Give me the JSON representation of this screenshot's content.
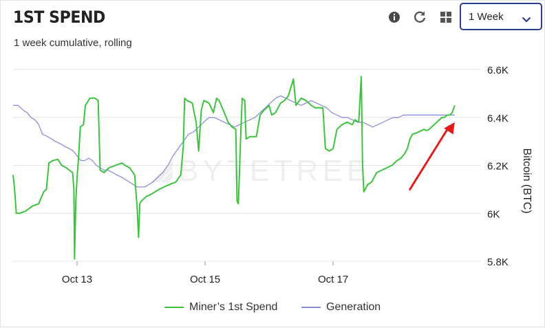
{
  "header": {
    "title": "1ST SPEND",
    "subtitle": "1 week cumulative, rolling"
  },
  "toolbar": {
    "icons": [
      "info-icon",
      "refresh-icon",
      "grid-icon"
    ],
    "period_selected": "1 Week"
  },
  "watermark": "BYTETREE",
  "colors": {
    "series_spend": "#3cc33c",
    "series_generation": "#8b8ed6",
    "annotation_arrow": "#e31b1b",
    "select_border": "#2f3b8f"
  },
  "chart_data": {
    "type": "line",
    "x_domain": [
      0,
      7.3
    ],
    "x_ticks": [
      {
        "x": 1.0,
        "label": "Oct 13"
      },
      {
        "x": 3.0,
        "label": "Oct 15"
      },
      {
        "x": 5.0,
        "label": "Oct 17"
      }
    ],
    "ylim": [
      5800,
      6600
    ],
    "y_ticks": [
      {
        "y": 5800,
        "label": "5.8K"
      },
      {
        "y": 6000,
        "label": "6K"
      },
      {
        "y": 6200,
        "label": "6.2K"
      },
      {
        "y": 6400,
        "label": "6.4K"
      },
      {
        "y": 6600,
        "label": "6.6K"
      }
    ],
    "ylabel": "Bitcoin (BTC)",
    "grid": true,
    "legend_position": "bottom",
    "annotation": {
      "type": "arrow",
      "from": [
        6.2,
        6100
      ],
      "to": [
        6.9,
        6380
      ]
    },
    "series": [
      {
        "name": "Miner’s 1st Spend",
        "color": "#3cc33c",
        "points": [
          [
            0.0,
            6160
          ],
          [
            0.02,
            6110
          ],
          [
            0.05,
            6000
          ],
          [
            0.1,
            6000
          ],
          [
            0.2,
            6010
          ],
          [
            0.3,
            6030
          ],
          [
            0.4,
            6040
          ],
          [
            0.48,
            6090
          ],
          [
            0.52,
            6100
          ],
          [
            0.56,
            6210
          ],
          [
            0.62,
            6220
          ],
          [
            0.7,
            6225
          ],
          [
            0.76,
            6200
          ],
          [
            0.83,
            6190
          ],
          [
            0.88,
            6180
          ],
          [
            0.93,
            6170
          ],
          [
            0.95,
            6100
          ],
          [
            0.96,
            5810
          ],
          [
            0.98,
            6050
          ],
          [
            1.0,
            6150
          ],
          [
            1.02,
            6220
          ],
          [
            1.05,
            6360
          ],
          [
            1.1,
            6370
          ],
          [
            1.13,
            6450
          ],
          [
            1.2,
            6480
          ],
          [
            1.28,
            6480
          ],
          [
            1.33,
            6470
          ],
          [
            1.36,
            6180
          ],
          [
            1.42,
            6170
          ],
          [
            1.5,
            6190
          ],
          [
            1.6,
            6200
          ],
          [
            1.7,
            6210
          ],
          [
            1.75,
            6200
          ],
          [
            1.82,
            6190
          ],
          [
            1.9,
            6160
          ],
          [
            1.94,
            6020
          ],
          [
            1.96,
            5900
          ],
          [
            1.98,
            6040
          ],
          [
            2.0,
            6050
          ],
          [
            2.08,
            6070
          ],
          [
            2.16,
            6080
          ],
          [
            2.22,
            6090
          ],
          [
            2.28,
            6100
          ],
          [
            2.36,
            6110
          ],
          [
            2.44,
            6120
          ],
          [
            2.54,
            6130
          ],
          [
            2.62,
            6160
          ],
          [
            2.66,
            6280
          ],
          [
            2.68,
            6480
          ],
          [
            2.72,
            6470
          ],
          [
            2.8,
            6460
          ],
          [
            2.86,
            6380
          ],
          [
            2.9,
            6260
          ],
          [
            2.94,
            6430
          ],
          [
            2.98,
            6470
          ],
          [
            3.06,
            6460
          ],
          [
            3.13,
            6420
          ],
          [
            3.18,
            6480
          ],
          [
            3.22,
            6470
          ],
          [
            3.3,
            6420
          ],
          [
            3.36,
            6380
          ],
          [
            3.42,
            6360
          ],
          [
            3.48,
            6350
          ],
          [
            3.5,
            6050
          ],
          [
            3.52,
            6040
          ],
          [
            3.54,
            6200
          ],
          [
            3.56,
            6350
          ],
          [
            3.58,
            6480
          ],
          [
            3.62,
            6470
          ],
          [
            3.64,
            6310
          ],
          [
            3.7,
            6320
          ],
          [
            3.8,
            6320
          ],
          [
            3.86,
            6410
          ],
          [
            3.92,
            6430
          ],
          [
            4.0,
            6450
          ],
          [
            4.04,
            6410
          ],
          [
            4.1,
            6420
          ],
          [
            4.18,
            6460
          ],
          [
            4.24,
            6470
          ],
          [
            4.3,
            6490
          ],
          [
            4.38,
            6560
          ],
          [
            4.42,
            6450
          ],
          [
            4.5,
            6480
          ],
          [
            4.58,
            6470
          ],
          [
            4.66,
            6450
          ],
          [
            4.72,
            6440
          ],
          [
            4.78,
            6440
          ],
          [
            4.84,
            6440
          ],
          [
            4.88,
            6270
          ],
          [
            4.94,
            6260
          ],
          [
            5.0,
            6270
          ],
          [
            5.06,
            6350
          ],
          [
            5.14,
            6370
          ],
          [
            5.22,
            6380
          ],
          [
            5.3,
            6370
          ],
          [
            5.34,
            6390
          ],
          [
            5.4,
            6380
          ],
          [
            5.44,
            6570
          ],
          [
            5.46,
            6200
          ],
          [
            5.48,
            6090
          ],
          [
            5.54,
            6120
          ],
          [
            5.6,
            6130
          ],
          [
            5.68,
            6170
          ],
          [
            5.76,
            6180
          ],
          [
            5.84,
            6190
          ],
          [
            5.92,
            6200
          ],
          [
            6.0,
            6220
          ],
          [
            6.06,
            6230
          ],
          [
            6.12,
            6250
          ],
          [
            6.16,
            6270
          ],
          [
            6.2,
            6310
          ],
          [
            6.24,
            6330
          ],
          [
            6.3,
            6335
          ],
          [
            6.34,
            6340
          ],
          [
            6.38,
            6345
          ],
          [
            6.42,
            6350
          ],
          [
            6.46,
            6345
          ],
          [
            6.5,
            6350
          ],
          [
            6.54,
            6360
          ],
          [
            6.58,
            6370
          ],
          [
            6.62,
            6380
          ],
          [
            6.66,
            6390
          ],
          [
            6.7,
            6400
          ],
          [
            6.74,
            6400
          ],
          [
            6.78,
            6410
          ],
          [
            6.82,
            6410
          ],
          [
            6.86,
            6420
          ],
          [
            6.9,
            6450
          ]
        ]
      },
      {
        "name": "Generation",
        "color": "#8b8ed6",
        "points": [
          [
            0.0,
            6450
          ],
          [
            0.08,
            6450
          ],
          [
            0.16,
            6430
          ],
          [
            0.22,
            6420
          ],
          [
            0.28,
            6400
          ],
          [
            0.34,
            6390
          ],
          [
            0.4,
            6370
          ],
          [
            0.46,
            6330
          ],
          [
            0.54,
            6320
          ],
          [
            0.6,
            6310
          ],
          [
            0.66,
            6300
          ],
          [
            0.74,
            6290
          ],
          [
            0.8,
            6280
          ],
          [
            0.88,
            6270
          ],
          [
            0.94,
            6260
          ],
          [
            1.0,
            6240
          ],
          [
            1.06,
            6220
          ],
          [
            1.12,
            6220
          ],
          [
            1.18,
            6230
          ],
          [
            1.24,
            6220
          ],
          [
            1.3,
            6200
          ],
          [
            1.36,
            6190
          ],
          [
            1.42,
            6180
          ],
          [
            1.48,
            6180
          ],
          [
            1.56,
            6170
          ],
          [
            1.62,
            6160
          ],
          [
            1.7,
            6150
          ],
          [
            1.76,
            6140
          ],
          [
            1.82,
            6130
          ],
          [
            1.88,
            6120
          ],
          [
            1.94,
            6110
          ],
          [
            2.0,
            6110
          ],
          [
            2.06,
            6110
          ],
          [
            2.12,
            6120
          ],
          [
            2.18,
            6130
          ],
          [
            2.26,
            6150
          ],
          [
            2.34,
            6170
          ],
          [
            2.42,
            6200
          ],
          [
            2.5,
            6240
          ],
          [
            2.58,
            6270
          ],
          [
            2.66,
            6300
          ],
          [
            2.74,
            6330
          ],
          [
            2.82,
            6340
          ],
          [
            2.9,
            6360
          ],
          [
            2.98,
            6380
          ],
          [
            3.06,
            6400
          ],
          [
            3.14,
            6400
          ],
          [
            3.22,
            6390
          ],
          [
            3.3,
            6380
          ],
          [
            3.38,
            6370
          ],
          [
            3.46,
            6360
          ],
          [
            3.54,
            6370
          ],
          [
            3.62,
            6380
          ],
          [
            3.7,
            6390
          ],
          [
            3.78,
            6400
          ],
          [
            3.86,
            6420
          ],
          [
            3.94,
            6440
          ],
          [
            4.02,
            6460
          ],
          [
            4.1,
            6480
          ],
          [
            4.18,
            6490
          ],
          [
            4.26,
            6480
          ],
          [
            4.34,
            6470
          ],
          [
            4.42,
            6460
          ],
          [
            4.5,
            6450
          ],
          [
            4.58,
            6460
          ],
          [
            4.66,
            6470
          ],
          [
            4.74,
            6460
          ],
          [
            4.82,
            6450
          ],
          [
            4.9,
            6440
          ],
          [
            4.98,
            6420
          ],
          [
            5.06,
            6410
          ],
          [
            5.14,
            6400
          ],
          [
            5.22,
            6400
          ],
          [
            5.3,
            6390
          ],
          [
            5.38,
            6380
          ],
          [
            5.46,
            6380
          ],
          [
            5.54,
            6370
          ],
          [
            5.62,
            6360
          ],
          [
            5.7,
            6370
          ],
          [
            5.78,
            6380
          ],
          [
            5.86,
            6390
          ],
          [
            5.94,
            6400
          ],
          [
            6.02,
            6400
          ],
          [
            6.1,
            6410
          ],
          [
            6.18,
            6410
          ],
          [
            6.26,
            6410
          ],
          [
            6.34,
            6410
          ],
          [
            6.42,
            6410
          ],
          [
            6.5,
            6410
          ],
          [
            6.58,
            6410
          ],
          [
            6.66,
            6410
          ],
          [
            6.74,
            6410
          ],
          [
            6.82,
            6410
          ],
          [
            6.9,
            6410
          ]
        ]
      }
    ]
  }
}
